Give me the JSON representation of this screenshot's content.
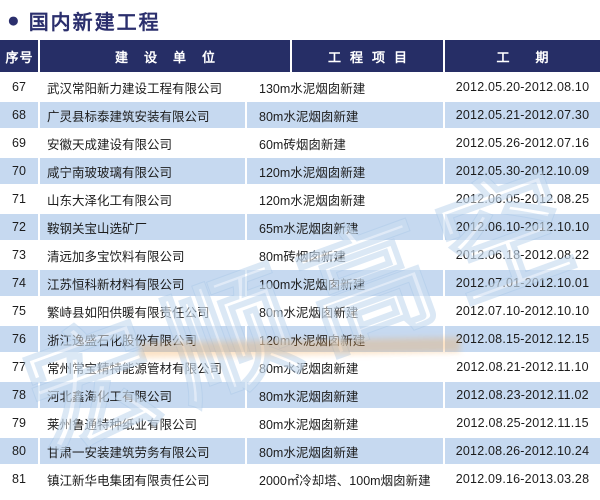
{
  "page": {
    "title": "国内新建工程"
  },
  "icons": {
    "bullet": "●"
  },
  "colors": {
    "header_bg": "#262e66",
    "title_color": "#2b2f6d",
    "row_alt": "#c6d9f0",
    "watermark_orange": "#f39e42"
  },
  "table": {
    "headers": [
      "序号",
      "建设单位",
      "工程项目",
      "工期"
    ],
    "rows": [
      {
        "no": "67",
        "company": "武汉常阳新力建设工程有限公司",
        "project": "130m水泥烟囱新建",
        "period": "2012.05.20-2012.08.10"
      },
      {
        "no": "68",
        "company": "广灵县标泰建筑安装有限公司",
        "project": "80m水泥烟囱新建",
        "period": "2012.05.21-2012.07.30"
      },
      {
        "no": "69",
        "company": "安徽天成建设有限公司",
        "project": "60m砖烟囱新建",
        "period": "2012.05.26-2012.07.16"
      },
      {
        "no": "70",
        "company": "咸宁南玻玻璃有限公司",
        "project": "120m水泥烟囱新建",
        "period": "2012.05.30-2012.10.09"
      },
      {
        "no": "71",
        "company": "山东大泽化工有限公司",
        "project": "120m水泥烟囱新建",
        "period": "2012.06.05-2012.08.25"
      },
      {
        "no": "72",
        "company": "鞍钢关宝山选矿厂",
        "project": "65m水泥烟囱新建",
        "period": "2012.06.10-2012.10.10"
      },
      {
        "no": "73",
        "company": "清远加多宝饮料有限公司",
        "project": "80m砖烟囱新建",
        "period": "2012.06.18-2012.08.22"
      },
      {
        "no": "74",
        "company": "江苏恒科新材料有限公司",
        "project": "100m水泥烟囱新建",
        "period": "2012.07.01-2012.10.01"
      },
      {
        "no": "75",
        "company": "繁峙县如阳供暖有限责任公司",
        "project": "80m水泥烟囱新建",
        "period": "2012.07.10-2012.10.10"
      },
      {
        "no": "76",
        "company": "浙江逸盛石化股份有限公司",
        "project": "120m水泥烟囱新建",
        "period": "2012.08.15-2012.12.15"
      },
      {
        "no": "77",
        "company": "常州常宝精特能源管材有限公司",
        "project": "80m水泥烟囱新建",
        "period": "2012.08.21-2012.11.10"
      },
      {
        "no": "78",
        "company": "河北鑫海化工有限公司",
        "project": "80m水泥烟囱新建",
        "period": "2012.08.23-2012.11.02"
      },
      {
        "no": "79",
        "company": "莱州鲁通特种纸业有限公司",
        "project": "80m水泥烟囱新建",
        "period": "2012.08.25-2012.11.15"
      },
      {
        "no": "80",
        "company": "甘肃一安装建筑劳务有限公司",
        "project": "80m水泥烟囱新建",
        "period": "2012.08.26-2012.10.24"
      },
      {
        "no": "81",
        "company": "镇江新华电集团有限责任公司",
        "project": "2000㎡冷却塔、100m烟囱新建",
        "period": "2012.09.16-2013.03.28"
      }
    ]
  },
  "watermark": {
    "text": "宏顺高空"
  }
}
